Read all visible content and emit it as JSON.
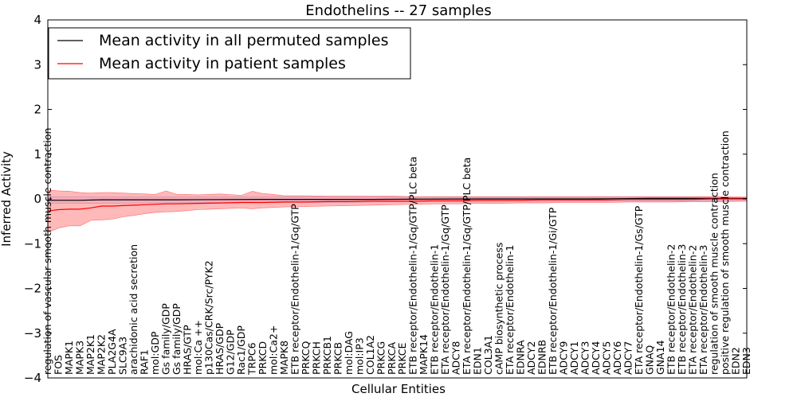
{
  "chart_data": {
    "type": "line",
    "title": "Endothelins -- 27 samples",
    "xlabel": "Cellular Entities",
    "ylabel": "Inferred Activity",
    "ylim": [
      -4,
      4
    ],
    "yticks": [
      -4,
      -3,
      -2,
      -1,
      0,
      1,
      2,
      3,
      4
    ],
    "ytick_labels": [
      "−4",
      "−3",
      "−2",
      "−1",
      "0",
      "1",
      "2",
      "3",
      "4"
    ],
    "legend_position": "top-left",
    "grid": false,
    "entities": [
      "regulation of vascular smooth muscle contraction",
      "FOS",
      "MAPK1",
      "MAPK3",
      "MAP2K1",
      "MAP2K2",
      "PLA2G4A",
      "SLC9A3",
      "arachidonic acid secretion",
      "RAF1",
      "mol:GDP",
      "Gs family/GDP",
      "Gs family/GDP",
      "HRAS/GTP",
      "mol:Ca ++",
      "p130Cas/CRK/Src/PYK2",
      "HRAS/GDP",
      "G12/GDP",
      "Rac1/GDP",
      "TRPC6",
      "PRKCD",
      "mol:Ca2+",
      "MAPK8",
      "ETB receptor/Endothelin-1/Gq/GTP",
      "PRKCQ",
      "PRKCH",
      "PRKCB1",
      "PRKCB",
      "mol:DAG",
      "mol:IP3",
      "COL1A2",
      "PRKCG",
      "PRKCA",
      "PRKCE",
      "ETB receptor/Endothelin-1/Gq/GTP/PLC beta",
      "MAPK14",
      "ETB receptor/Endothelin-1",
      "ETA receptor/Endothelin-1/Gq/GTP",
      "ADCY8",
      "ETA receptor/Endothelin-1/Gq/GTP/PLC beta",
      "EDN1",
      "COL3A1",
      "cAMP biosynthetic process",
      "ETA receptor/Endothelin-1",
      "EDNRA",
      "ADCY2",
      "EDNRB",
      "ETB receptor/Endothelin-1/Gi/GTP",
      "ADCY9",
      "ADCY1",
      "ADCY3",
      "ADCY4",
      "ADCY5",
      "ADCY6",
      "ADCY7",
      "ETA receptor/Endothelin-1/Gs/GTP",
      "GNAQ",
      "GNA14",
      "ETB receptor/Endothelin-2",
      "ETB receptor/Endothelin-3",
      "ETA receptor/Endothelin-2",
      "ETA receptor/Endothelin-3",
      "regulation of smooth muscle contraction",
      "positive regulation of smooth muscle contraction",
      "EDN2",
      "EDN3"
    ],
    "label_columns": [
      [
        0
      ],
      [
        1
      ],
      [
        2
      ],
      [
        3
      ],
      [
        4
      ],
      [
        5
      ],
      [
        6
      ],
      [
        7
      ],
      [
        8
      ],
      [
        9
      ],
      [
        10,
        11
      ],
      [
        12
      ],
      [
        13
      ],
      [
        14
      ],
      [
        15
      ],
      [
        16
      ],
      [
        17
      ],
      [
        18
      ],
      [
        19
      ],
      [
        20
      ],
      [
        21
      ],
      [
        22
      ],
      [
        23
      ],
      [
        24
      ],
      [
        25
      ],
      [
        26
      ],
      [
        27
      ],
      [
        28,
        29,
        30
      ],
      [
        31
      ],
      [
        32
      ],
      [
        33
      ],
      [
        34
      ],
      [
        35
      ],
      [
        36
      ],
      [
        37
      ],
      [
        38
      ],
      [
        39
      ],
      [
        40
      ],
      [
        41
      ],
      [
        42
      ],
      [
        43,
        44
      ],
      [
        45
      ],
      [
        46
      ],
      [
        47
      ],
      [
        48
      ],
      [
        49
      ],
      [
        50
      ],
      [
        51
      ],
      [
        52
      ],
      [
        53
      ],
      [
        54
      ],
      [
        55,
        56
      ],
      [
        57
      ],
      [
        58
      ],
      [
        59,
        60,
        61,
        62,
        63,
        64,
        65
      ]
    ],
    "series": [
      {
        "name": "Mean activity in all permuted samples",
        "color": "#000000",
        "x": [
          0,
          3,
          5,
          8,
          12,
          20,
          25,
          30,
          40,
          50,
          56,
          60,
          65
        ],
        "y": [
          -0.03,
          -0.03,
          -0.02,
          -0.02,
          -0.02,
          -0.01,
          -0.01,
          -0.01,
          0.0,
          0.0,
          0.01,
          0.01,
          0.01
        ]
      },
      {
        "name": "Mean activity in patient samples",
        "color": "#ff0000",
        "x": [
          0,
          1,
          2,
          3,
          4,
          5,
          6,
          7,
          8,
          9,
          10,
          11,
          12,
          14,
          16,
          18,
          20,
          22,
          24,
          26,
          28,
          30,
          32,
          34,
          36,
          38,
          40,
          42,
          44,
          46,
          48,
          50,
          52,
          54,
          56,
          58,
          60,
          62,
          65
        ],
        "y": [
          -0.27,
          -0.24,
          -0.23,
          -0.23,
          -0.2,
          -0.16,
          -0.16,
          -0.15,
          -0.14,
          -0.13,
          -0.12,
          -0.11,
          -0.11,
          -0.1,
          -0.09,
          -0.08,
          -0.08,
          -0.07,
          -0.07,
          -0.06,
          -0.06,
          -0.05,
          -0.05,
          -0.05,
          -0.04,
          -0.04,
          -0.03,
          -0.03,
          -0.03,
          -0.02,
          -0.02,
          -0.02,
          -0.02,
          -0.01,
          -0.01,
          -0.01,
          -0.01,
          0.0,
          0.0
        ]
      }
    ],
    "permuted_band": {
      "color": "#c8c8ff",
      "x": [
        0,
        3,
        10,
        20,
        30,
        40,
        50,
        60,
        65
      ],
      "upper": [
        0.05,
        0.05,
        0.05,
        0.05,
        0.05,
        0.04,
        0.04,
        0.04,
        0.04
      ],
      "lower": [
        -0.1,
        -0.1,
        -0.09,
        -0.08,
        -0.07,
        -0.06,
        -0.05,
        -0.05,
        -0.05
      ]
    },
    "patient_band": {
      "color": "#ff8080",
      "x": [
        0,
        1,
        2,
        3,
        4,
        5,
        6,
        7,
        8,
        9,
        10,
        11,
        12,
        13,
        14,
        16,
        18,
        19,
        20,
        21,
        22,
        24,
        26,
        28,
        30,
        32,
        34,
        36,
        38,
        40,
        42,
        44,
        46,
        48,
        50,
        52,
        54,
        56,
        58,
        60,
        62,
        65
      ],
      "upper": [
        0.2,
        0.18,
        0.17,
        0.14,
        0.13,
        0.14,
        0.14,
        0.13,
        0.12,
        0.11,
        0.1,
        0.18,
        0.1,
        0.1,
        0.09,
        0.11,
        0.08,
        0.17,
        0.12,
        0.1,
        0.07,
        0.07,
        0.06,
        0.06,
        0.06,
        0.06,
        0.05,
        0.05,
        0.05,
        0.05,
        0.05,
        0.05,
        0.05,
        0.05,
        0.05,
        0.05,
        0.05,
        0.05,
        0.05,
        0.05,
        0.05,
        0.04
      ],
      "lower": [
        -0.75,
        -0.65,
        -0.6,
        -0.6,
        -0.48,
        -0.47,
        -0.45,
        -0.4,
        -0.37,
        -0.33,
        -0.3,
        -0.29,
        -0.28,
        -0.26,
        -0.24,
        -0.22,
        -0.2,
        -0.22,
        -0.2,
        -0.19,
        -0.18,
        -0.17,
        -0.16,
        -0.15,
        -0.14,
        -0.13,
        -0.12,
        -0.11,
        -0.11,
        -0.1,
        -0.1,
        -0.09,
        -0.09,
        -0.08,
        -0.08,
        -0.08,
        -0.07,
        -0.07,
        -0.07,
        -0.06,
        -0.06,
        -0.05
      ]
    }
  }
}
